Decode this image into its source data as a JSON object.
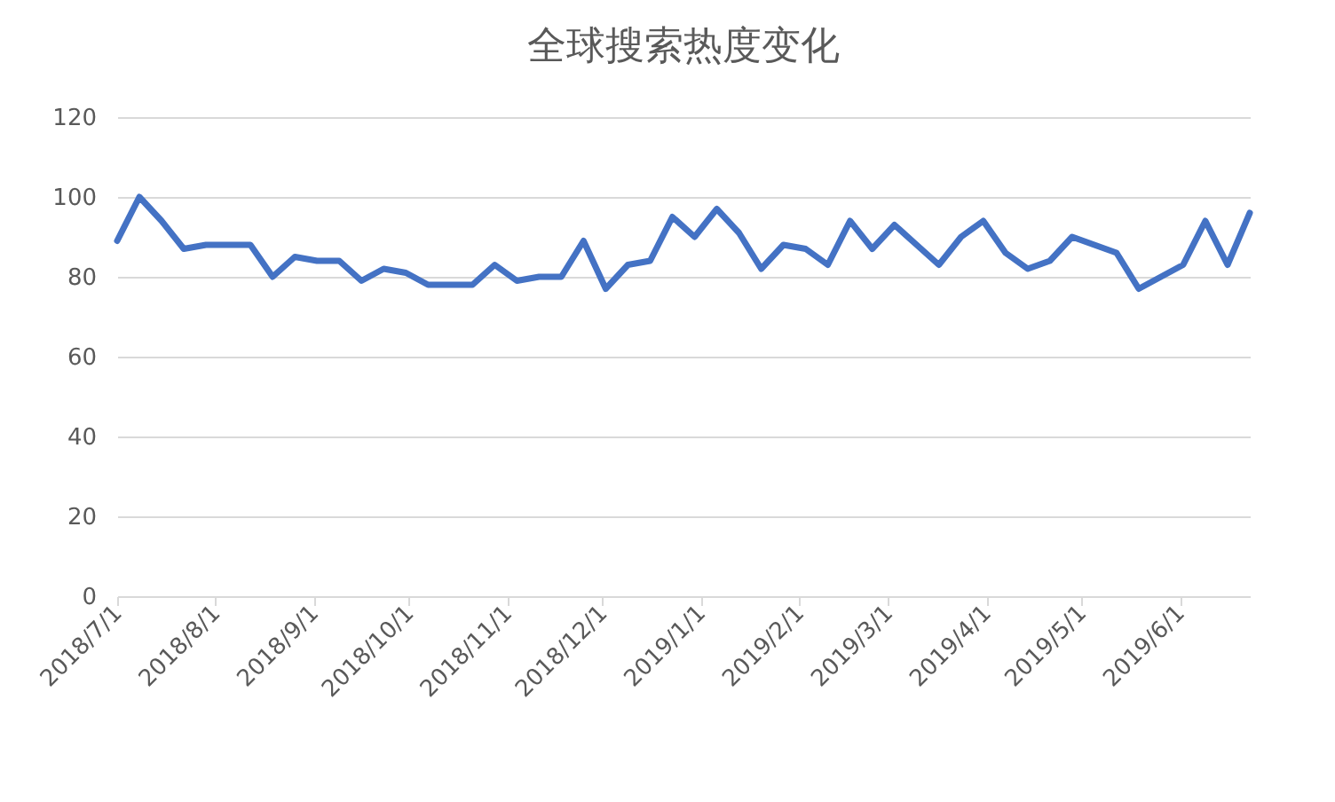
{
  "chart_data": {
    "type": "line",
    "title": "全球搜索热度变化",
    "x": [
      "2018-07-01",
      "2018-07-08",
      "2018-07-15",
      "2018-07-22",
      "2018-07-29",
      "2018-08-05",
      "2018-08-12",
      "2018-08-19",
      "2018-08-26",
      "2018-09-02",
      "2018-09-09",
      "2018-09-16",
      "2018-09-23",
      "2018-09-30",
      "2018-10-07",
      "2018-10-14",
      "2018-10-21",
      "2018-10-28",
      "2018-11-04",
      "2018-11-11",
      "2018-11-18",
      "2018-11-25",
      "2018-12-02",
      "2018-12-09",
      "2018-12-16",
      "2018-12-23",
      "2018-12-30",
      "2019-01-06",
      "2019-01-13",
      "2019-01-20",
      "2019-01-27",
      "2019-02-03",
      "2019-02-10",
      "2019-02-17",
      "2019-02-24",
      "2019-03-03",
      "2019-03-10",
      "2019-03-17",
      "2019-03-24",
      "2019-03-31",
      "2019-04-07",
      "2019-04-14",
      "2019-04-21",
      "2019-04-28",
      "2019-05-05",
      "2019-05-12",
      "2019-05-19",
      "2019-05-26",
      "2019-06-02",
      "2019-06-09",
      "2019-06-16",
      "2019-06-23"
    ],
    "series": [
      {
        "color": "#4472c4",
        "values": [
          89,
          100,
          94,
          87,
          88,
          88,
          88,
          80,
          85,
          84,
          84,
          79,
          82,
          81,
          78,
          78,
          78,
          83,
          79,
          80,
          80,
          89,
          77,
          83,
          84,
          95,
          90,
          97,
          91,
          82,
          88,
          87,
          83,
          94,
          87,
          93,
          88,
          83,
          90,
          94,
          86,
          82,
          84,
          90,
          88,
          86,
          77,
          80,
          83,
          94,
          83,
          96
        ]
      }
    ],
    "xlim": [
      "2018-07-01",
      "2019-06-23"
    ],
    "xticks": [
      {
        "value": "2018-07-01",
        "label": "2018/7/1"
      },
      {
        "value": "2018-08-01",
        "label": "2018/8/1"
      },
      {
        "value": "2018-09-01",
        "label": "2018/9/1"
      },
      {
        "value": "2018-10-01",
        "label": "2018/10/1"
      },
      {
        "value": "2018-11-01",
        "label": "2018/11/1"
      },
      {
        "value": "2018-12-01",
        "label": "2018/12/1"
      },
      {
        "value": "2019-01-01",
        "label": "2019/1/1"
      },
      {
        "value": "2019-02-01",
        "label": "2019/2/1"
      },
      {
        "value": "2019-03-01",
        "label": "2019/3/1"
      },
      {
        "value": "2019-04-01",
        "label": "2019/4/1"
      },
      {
        "value": "2019-05-01",
        "label": "2019/5/1"
      },
      {
        "value": "2019-06-01",
        "label": "2019/6/1"
      }
    ],
    "ylim": [
      0,
      120
    ],
    "yticks": [
      0,
      20,
      40,
      60,
      80,
      100,
      120
    ],
    "grid": "y",
    "marker": "none",
    "line_style": "solid",
    "legend": false
  }
}
